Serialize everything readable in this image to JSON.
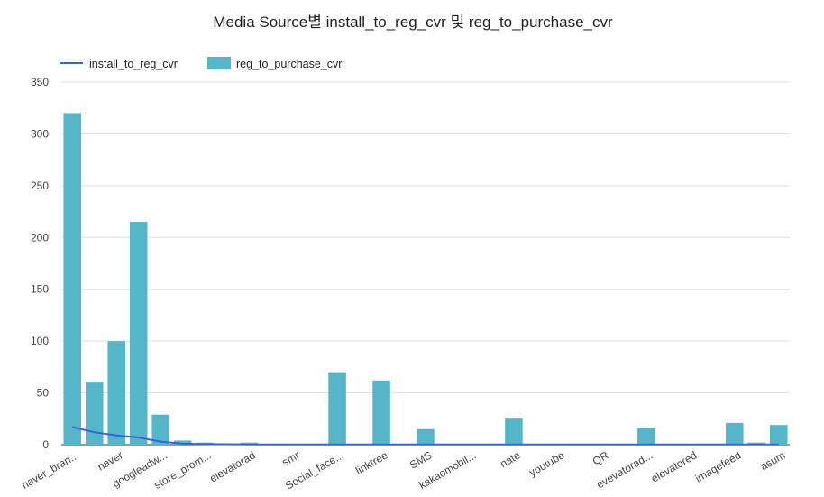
{
  "chart_data": {
    "type": "bar",
    "title": "Media Source별 install_to_reg_cvr 및 reg_to_purchase_cvr",
    "xlabel": "",
    "ylabel": "",
    "ylim": [
      0,
      350
    ],
    "yticks": [
      0,
      50,
      100,
      150,
      200,
      250,
      300,
      350
    ],
    "grid": true,
    "legend_position": "top-left",
    "categories": [
      "naver_bran...",
      "",
      "naver",
      "",
      "googleadw...",
      "",
      "store_prom...",
      "",
      "elevatorad",
      "",
      "smr",
      "",
      "Social_face...",
      "",
      "linktree",
      "",
      "SMS",
      "",
      "kakaomobil...",
      "",
      "nate",
      "",
      "youtube",
      "",
      "QR",
      "",
      "evevatorad...",
      "",
      "elevatored",
      "",
      "imagefeed",
      "",
      "asum"
    ],
    "series": [
      {
        "name": "install_to_reg_cvr",
        "kind": "line",
        "color": "#3366dd",
        "values": [
          17,
          12,
          9,
          7,
          3,
          1,
          0.5,
          0.4,
          0.3,
          0.3,
          0.3,
          0.3,
          0.3,
          0.3,
          0.3,
          0.3,
          0.3,
          0.3,
          0.3,
          0.3,
          0.3,
          0.3,
          0.3,
          0.3,
          0.3,
          0.3,
          0.3,
          0.3,
          0.3,
          0.3,
          0.3,
          0.3,
          0.3
        ]
      },
      {
        "name": "reg_to_purchase_cvr",
        "kind": "bar",
        "color": "#56b6c9",
        "values": [
          320,
          60,
          100,
          215,
          29,
          4,
          2,
          1,
          2,
          0,
          0,
          0,
          70,
          0,
          62,
          0,
          15,
          0,
          0,
          0,
          26,
          0,
          0,
          0,
          0,
          0,
          16,
          0,
          0,
          0,
          21,
          2,
          19
        ]
      }
    ]
  }
}
